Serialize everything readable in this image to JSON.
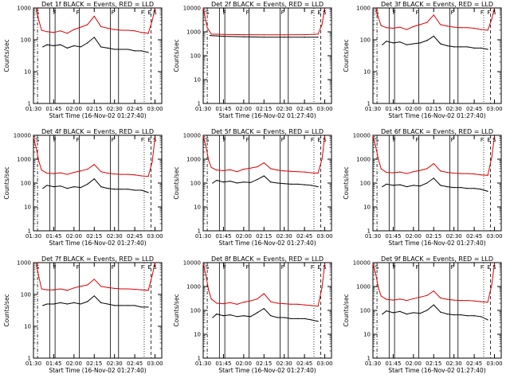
{
  "figure": {
    "xlabel": "Start Time (16-Nov-02 01:27:40)",
    "ylabel": "Counts/sec",
    "colors": {
      "events": "#000000",
      "lld": "#dd0000",
      "axes": "#000000"
    }
  },
  "chart_data": [
    {
      "type": "line",
      "title": "Det 1f BLACK = Events, RED = LLD",
      "x_ticks": [
        "01:30",
        "01:45",
        "02:00",
        "02:15",
        "02:30",
        "02:45",
        "03:00"
      ],
      "y_ticks": [
        "1",
        "10",
        "100",
        "1000"
      ],
      "ylim": [
        1,
        1000
      ],
      "yscale": "log",
      "markers": [
        "S",
        "F",
        "F",
        "F",
        "F",
        "E",
        "S"
      ],
      "series": [
        {
          "role": "events",
          "x": [
            "01:37",
            "01:40",
            "01:45",
            "01:50",
            "01:55",
            "02:00",
            "02:05",
            "02:10",
            "02:15",
            "02:20",
            "02:25",
            "02:30",
            "02:35",
            "02:40",
            "02:45",
            "02:50",
            "02:55"
          ],
          "values": [
            60,
            70,
            65,
            70,
            55,
            65,
            60,
            80,
            120,
            60,
            55,
            50,
            50,
            50,
            45,
            45,
            40
          ]
        },
        {
          "role": "lld",
          "x": [
            "01:32",
            "01:34",
            "01:36",
            "01:40",
            "01:45",
            "01:50",
            "01:55",
            "02:00",
            "02:05",
            "02:10",
            "02:15",
            "02:20",
            "02:25",
            "02:30",
            "02:35",
            "02:40",
            "02:45",
            "02:50",
            "02:55",
            "02:58",
            "03:00"
          ],
          "values": [
            1000,
            400,
            200,
            180,
            170,
            190,
            160,
            210,
            250,
            300,
            550,
            260,
            230,
            210,
            200,
            200,
            190,
            170,
            160,
            400,
            1000
          ]
        }
      ]
    },
    {
      "type": "line",
      "title": "Det 2f BLACK = Events, RED = LLD",
      "x_ticks": [
        "01:30",
        "01:45",
        "02:00",
        "02:15",
        "02:30",
        "02:45",
        "03:00"
      ],
      "y_ticks": [
        "1",
        "10",
        "100",
        "1000",
        "10000"
      ],
      "ylim": [
        1,
        10000
      ],
      "yscale": "log",
      "markers": [
        "S",
        "F",
        "F",
        "F",
        "F",
        "E",
        "S"
      ],
      "series": [
        {
          "role": "events",
          "x": [
            "01:35",
            "01:45",
            "02:00",
            "02:15",
            "02:30",
            "02:45",
            "02:55"
          ],
          "values": [
            700,
            650,
            620,
            600,
            600,
            600,
            600
          ]
        },
        {
          "role": "lld",
          "x": [
            "01:30",
            "01:33",
            "01:36",
            "01:45",
            "02:00",
            "02:15",
            "02:30",
            "02:45",
            "02:55",
            "02:58",
            "03:00"
          ],
          "values": [
            10000,
            1500,
            800,
            780,
            760,
            750,
            750,
            760,
            800,
            2000,
            10000
          ]
        }
      ]
    },
    {
      "type": "line",
      "title": "Det 3f BLACK = Events, RED = LLD",
      "x_ticks": [
        "01:30",
        "01:45",
        "02:00",
        "02:15",
        "02:30",
        "02:45",
        "03:00"
      ],
      "y_ticks": [
        "1",
        "10",
        "100",
        "1000"
      ],
      "ylim": [
        1,
        1000
      ],
      "yscale": "log",
      "markers": [
        "S",
        "F",
        "F",
        "F",
        "F",
        "F",
        "S"
      ],
      "series": [
        {
          "role": "events",
          "x": [
            "01:37",
            "01:40",
            "01:45",
            "01:50",
            "01:55",
            "02:00",
            "02:05",
            "02:10",
            "02:15",
            "02:20",
            "02:25",
            "02:30",
            "02:35",
            "02:40",
            "02:45",
            "02:50",
            "02:55"
          ],
          "values": [
            70,
            90,
            80,
            85,
            70,
            75,
            80,
            95,
            130,
            75,
            65,
            60,
            60,
            60,
            55,
            55,
            50
          ]
        },
        {
          "role": "lld",
          "x": [
            "01:32",
            "01:34",
            "01:36",
            "01:40",
            "01:45",
            "01:50",
            "01:55",
            "02:00",
            "02:05",
            "02:10",
            "02:15",
            "02:20",
            "02:25",
            "02:30",
            "02:35",
            "02:40",
            "02:45",
            "02:50",
            "02:55",
            "02:58",
            "03:00"
          ],
          "values": [
            1000,
            500,
            280,
            240,
            230,
            250,
            210,
            260,
            300,
            350,
            600,
            300,
            270,
            250,
            240,
            240,
            230,
            210,
            200,
            450,
            1000
          ]
        }
      ]
    },
    {
      "type": "line",
      "title": "Det 4f BLACK = Events, RED = LLD",
      "x_ticks": [
        "01:30",
        "01:45",
        "02:00",
        "02:15",
        "02:30",
        "02:45",
        "03:00"
      ],
      "y_ticks": [
        "1",
        "10",
        "100",
        "1000",
        "10000"
      ],
      "ylim": [
        1,
        10000
      ],
      "yscale": "log",
      "markers": [
        "S",
        "F",
        "F",
        "F",
        "F",
        "E",
        "S"
      ],
      "series": [
        {
          "role": "events",
          "x": [
            "01:37",
            "01:40",
            "01:45",
            "01:50",
            "01:55",
            "02:00",
            "02:05",
            "02:10",
            "02:15",
            "02:20",
            "02:25",
            "02:30",
            "02:35",
            "02:40",
            "02:45",
            "02:50",
            "02:55"
          ],
          "values": [
            60,
            80,
            70,
            75,
            60,
            70,
            65,
            90,
            150,
            70,
            60,
            55,
            55,
            55,
            50,
            50,
            40
          ]
        },
        {
          "role": "lld",
          "x": [
            "01:30",
            "01:32",
            "01:34",
            "01:36",
            "01:40",
            "01:45",
            "01:50",
            "01:55",
            "02:00",
            "02:05",
            "02:10",
            "02:15",
            "02:20",
            "02:25",
            "02:30",
            "02:35",
            "02:40",
            "02:45",
            "02:50",
            "02:55",
            "02:58",
            "03:00"
          ],
          "values": [
            8000,
            3000,
            800,
            350,
            260,
            250,
            270,
            230,
            280,
            320,
            380,
            600,
            300,
            260,
            240,
            230,
            230,
            220,
            200,
            190,
            800,
            8000
          ]
        }
      ]
    },
    {
      "type": "line",
      "title": "Det 5f BLACK = Events, RED = LLD",
      "x_ticks": [
        "01:30",
        "01:45",
        "02:00",
        "02:15",
        "02:30",
        "02:45",
        "03:00"
      ],
      "y_ticks": [
        "1",
        "10",
        "100",
        "1000",
        "10000"
      ],
      "ylim": [
        1,
        10000
      ],
      "yscale": "log",
      "markers": [
        "S",
        "F",
        "F",
        "F",
        "F",
        "E",
        "S"
      ],
      "series": [
        {
          "role": "events",
          "x": [
            "01:37",
            "01:40",
            "01:45",
            "01:50",
            "01:55",
            "02:00",
            "02:05",
            "02:10",
            "02:15",
            "02:20",
            "02:25",
            "02:30",
            "02:35",
            "02:40",
            "02:45",
            "02:50",
            "02:55"
          ],
          "values": [
            100,
            130,
            110,
            120,
            100,
            110,
            105,
            140,
            200,
            110,
            100,
            95,
            90,
            90,
            85,
            80,
            70
          ]
        },
        {
          "role": "lld",
          "x": [
            "01:30",
            "01:32",
            "01:34",
            "01:36",
            "01:40",
            "01:45",
            "01:50",
            "01:55",
            "02:00",
            "02:05",
            "02:10",
            "02:15",
            "02:20",
            "02:25",
            "02:30",
            "02:35",
            "02:40",
            "02:45",
            "02:50",
            "02:55",
            "02:58",
            "03:00"
          ],
          "values": [
            9000,
            3500,
            900,
            450,
            350,
            330,
            360,
            300,
            380,
            420,
            480,
            700,
            400,
            350,
            320,
            310,
            300,
            290,
            270,
            260,
            1000,
            9000
          ]
        }
      ]
    },
    {
      "type": "line",
      "title": "Det 6f BLACK = Events, RED = LLD",
      "x_ticks": [
        "01:30",
        "01:45",
        "02:00",
        "02:15",
        "02:30",
        "02:45",
        "03:00"
      ],
      "y_ticks": [
        "1",
        "10",
        "100",
        "1000",
        "10000"
      ],
      "ylim": [
        1,
        10000
      ],
      "yscale": "log",
      "markers": [
        "S",
        "F",
        "F",
        "F",
        "F",
        "E",
        "S"
      ],
      "series": [
        {
          "role": "events",
          "x": [
            "01:37",
            "01:40",
            "01:45",
            "01:50",
            "01:55",
            "02:00",
            "02:05",
            "02:10",
            "02:15",
            "02:20",
            "02:25",
            "02:30",
            "02:35",
            "02:40",
            "02:45",
            "02:50",
            "02:55"
          ],
          "values": [
            70,
            90,
            80,
            85,
            70,
            80,
            75,
            100,
            160,
            80,
            70,
            65,
            65,
            60,
            60,
            55,
            45
          ]
        },
        {
          "role": "lld",
          "x": [
            "01:30",
            "01:32",
            "01:34",
            "01:36",
            "01:40",
            "01:45",
            "01:50",
            "01:55",
            "02:00",
            "02:05",
            "02:10",
            "02:15",
            "02:20",
            "02:25",
            "02:30",
            "02:35",
            "02:40",
            "02:45",
            "02:50",
            "02:55",
            "02:58",
            "03:00"
          ],
          "values": [
            9000,
            3500,
            1000,
            400,
            280,
            270,
            290,
            250,
            300,
            340,
            400,
            650,
            320,
            280,
            260,
            250,
            250,
            240,
            220,
            210,
            1200,
            9000
          ]
        }
      ]
    },
    {
      "type": "line",
      "title": "Det 7f BLACK = Events, RED = LLD",
      "x_ticks": [
        "01:30",
        "01:45",
        "02:00",
        "02:15",
        "02:30",
        "02:45",
        "03:00"
      ],
      "y_ticks": [
        "1",
        "10",
        "100",
        "1000"
      ],
      "ylim": [
        1,
        1000
      ],
      "yscale": "log",
      "markers": [
        "S",
        "F",
        "F",
        "F",
        "F",
        "E",
        "S"
      ],
      "series": [
        {
          "role": "events",
          "x": [
            "01:37",
            "01:40",
            "01:45",
            "01:50",
            "01:55",
            "02:00",
            "02:05",
            "02:10",
            "02:15",
            "02:20",
            "02:25",
            "02:30",
            "02:35",
            "02:40",
            "02:45",
            "02:50",
            "02:55"
          ],
          "values": [
            45,
            50,
            50,
            55,
            50,
            55,
            50,
            60,
            90,
            55,
            50,
            45,
            45,
            45,
            45,
            40,
            40
          ]
        },
        {
          "role": "lld",
          "x": [
            "01:32",
            "01:34",
            "01:36",
            "01:40",
            "01:45",
            "01:50",
            "01:55",
            "02:00",
            "02:05",
            "02:10",
            "02:15",
            "02:20",
            "02:25",
            "02:30",
            "02:35",
            "02:40",
            "02:45",
            "02:50",
            "02:55",
            "02:58",
            "03:00"
          ],
          "values": [
            1000,
            350,
            150,
            140,
            140,
            150,
            135,
            160,
            180,
            200,
            300,
            180,
            165,
            155,
            150,
            150,
            145,
            140,
            135,
            400,
            1000
          ]
        }
      ]
    },
    {
      "type": "line",
      "title": "Det 8f BLACK = Events, RED = LLD",
      "x_ticks": [
        "01:30",
        "01:45",
        "02:00",
        "02:15",
        "02:30",
        "02:45",
        "03:00"
      ],
      "y_ticks": [
        "1",
        "10",
        "100",
        "1000",
        "10000"
      ],
      "ylim": [
        1,
        10000
      ],
      "yscale": "log",
      "markers": [
        "S",
        "F",
        "F",
        "F",
        "F",
        "E",
        "S"
      ],
      "series": [
        {
          "role": "events",
          "x": [
            "01:37",
            "01:40",
            "01:45",
            "01:50",
            "01:55",
            "02:00",
            "02:05",
            "02:10",
            "02:15",
            "02:20",
            "02:25",
            "02:30",
            "02:35",
            "02:40",
            "02:45",
            "02:50",
            "02:55"
          ],
          "values": [
            50,
            70,
            60,
            65,
            55,
            60,
            55,
            80,
            120,
            60,
            50,
            50,
            45,
            45,
            45,
            40,
            35
          ]
        },
        {
          "role": "lld",
          "x": [
            "01:30",
            "01:32",
            "01:34",
            "01:36",
            "01:40",
            "01:45",
            "01:50",
            "01:55",
            "02:00",
            "02:05",
            "02:10",
            "02:15",
            "02:20",
            "02:25",
            "02:30",
            "02:35",
            "02:40",
            "02:45",
            "02:50",
            "02:55",
            "02:58",
            "03:00"
          ],
          "values": [
            9000,
            3000,
            700,
            300,
            200,
            190,
            210,
            180,
            220,
            250,
            300,
            500,
            230,
            200,
            190,
            180,
            180,
            170,
            160,
            150,
            900,
            9000
          ]
        }
      ]
    },
    {
      "type": "line",
      "title": "Det 9f BLACK = Events, RED = LLD",
      "x_ticks": [
        "01:30",
        "01:45",
        "02:00",
        "02:15",
        "02:30",
        "02:45",
        "03:00"
      ],
      "y_ticks": [
        "1",
        "10",
        "100",
        "1000",
        "10000"
      ],
      "ylim": [
        1,
        10000
      ],
      "yscale": "log",
      "markers": [
        "S",
        "F",
        "F",
        "F",
        "F",
        "E",
        "S"
      ],
      "series": [
        {
          "role": "events",
          "x": [
            "01:37",
            "01:40",
            "01:45",
            "01:50",
            "01:55",
            "02:00",
            "02:05",
            "02:10",
            "02:15",
            "02:20",
            "02:25",
            "02:30",
            "02:35",
            "02:40",
            "02:45",
            "02:50",
            "02:55"
          ],
          "values": [
            70,
            95,
            80,
            90,
            70,
            80,
            75,
            100,
            170,
            85,
            70,
            65,
            65,
            60,
            60,
            55,
            40
          ]
        },
        {
          "role": "lld",
          "x": [
            "01:30",
            "01:32",
            "01:34",
            "01:36",
            "01:40",
            "01:45",
            "01:50",
            "01:55",
            "02:00",
            "02:05",
            "02:10",
            "02:15",
            "02:20",
            "02:25",
            "02:30",
            "02:35",
            "02:40",
            "02:45",
            "02:50",
            "02:55",
            "02:58",
            "03:00"
          ],
          "values": [
            9000,
            3500,
            900,
            400,
            290,
            270,
            300,
            260,
            310,
            360,
            420,
            650,
            330,
            290,
            270,
            260,
            260,
            250,
            230,
            220,
            1200,
            9000
          ]
        }
      ]
    }
  ]
}
